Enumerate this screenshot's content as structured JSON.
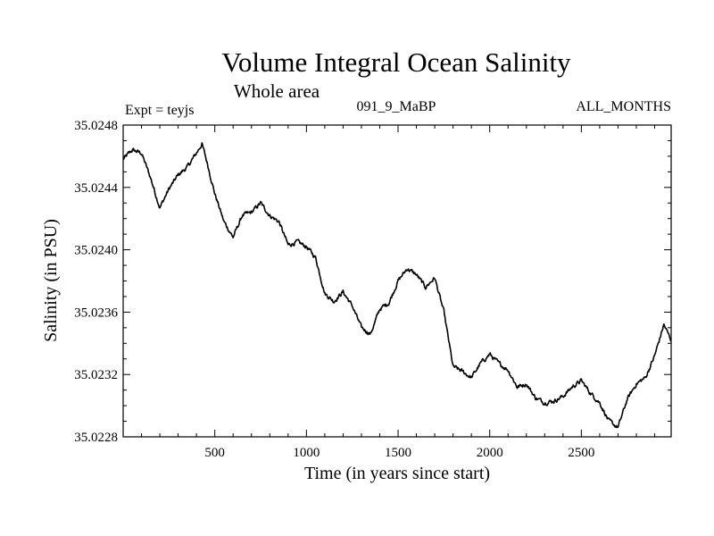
{
  "chart_data": {
    "type": "line",
    "title": "Volume Integral Ocean Salinity",
    "subtitle": "Whole area",
    "annotations": {
      "experiment": "Expt = teyjs",
      "run": "091_9_MaBP",
      "months": "ALL_MONTHS"
    },
    "xlabel": "Time (in years since start)",
    "ylabel": "Salinity (in PSU)",
    "xlim": [
      0,
      2990
    ],
    "ylim": [
      35.0228,
      35.0248
    ],
    "x_ticks": [
      500,
      1000,
      1500,
      2000,
      2500
    ],
    "x_tick_labels": [
      "500",
      "1000",
      "1500",
      "2000",
      "2500"
    ],
    "y_ticks": [
      35.0228,
      35.0232,
      35.0236,
      35.024,
      35.0244,
      35.0248
    ],
    "y_tick_labels": [
      "35.0228",
      "35.0232",
      "35.0236",
      "35.0240",
      "35.0244",
      "35.0248"
    ],
    "grid": false,
    "legend": "none",
    "series": [
      {
        "name": "Salinity",
        "color": "#000000",
        "x": [
          0,
          50,
          100,
          150,
          200,
          250,
          300,
          350,
          400,
          430,
          460,
          500,
          550,
          600,
          650,
          700,
          750,
          800,
          850,
          900,
          950,
          1000,
          1050,
          1100,
          1150,
          1200,
          1250,
          1300,
          1350,
          1400,
          1450,
          1500,
          1550,
          1600,
          1650,
          1700,
          1750,
          1800,
          1850,
          1900,
          1950,
          2000,
          2050,
          2100,
          2150,
          2200,
          2250,
          2300,
          2350,
          2400,
          2450,
          2500,
          2550,
          2600,
          2650,
          2700,
          2750,
          2800,
          2850,
          2900,
          2950,
          2990
        ],
        "y": [
          35.02458,
          35.02464,
          35.02462,
          35.02446,
          35.02427,
          35.02439,
          35.02448,
          35.02453,
          35.02462,
          35.02468,
          35.02455,
          35.02436,
          35.02418,
          35.02408,
          35.02422,
          35.02424,
          35.0243,
          35.02422,
          35.02418,
          35.02403,
          35.02405,
          35.02402,
          35.02395,
          35.02372,
          35.02367,
          35.02373,
          35.02364,
          35.0235,
          35.02346,
          35.02362,
          35.02366,
          35.0238,
          35.02388,
          35.02384,
          35.02376,
          35.02382,
          35.0236,
          35.02325,
          35.02322,
          35.02318,
          35.02327,
          35.02333,
          35.02327,
          35.02323,
          35.02312,
          35.02314,
          35.02305,
          35.02302,
          35.02303,
          35.02306,
          35.02312,
          35.02316,
          35.02308,
          35.02302,
          35.0229,
          35.02286,
          35.02304,
          35.02314,
          35.02318,
          35.02332,
          35.02352,
          35.02342
        ]
      }
    ]
  }
}
